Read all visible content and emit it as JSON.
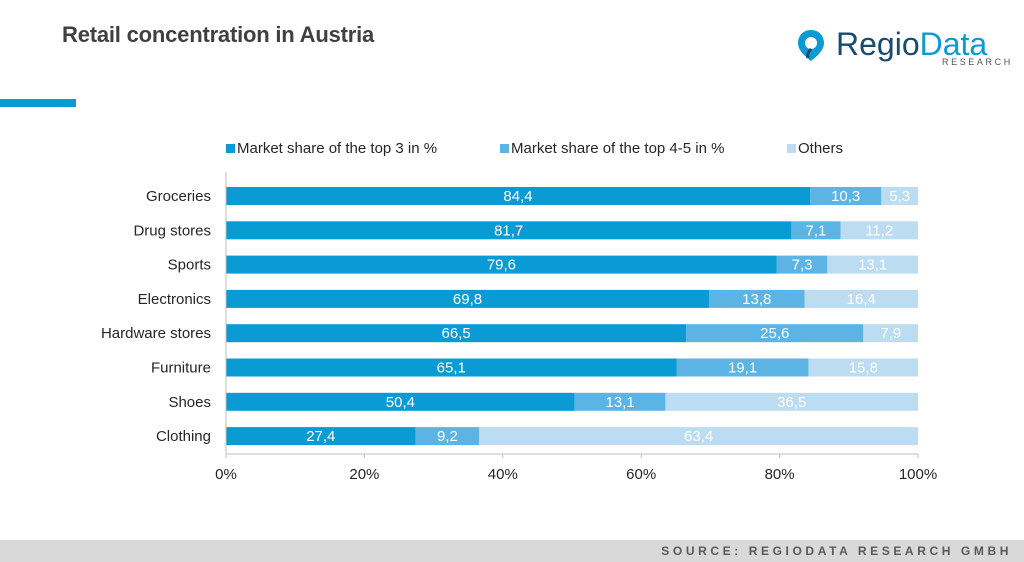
{
  "header": {
    "title": "Retail concentration in Austria",
    "accent_color": "#0a9bd5"
  },
  "logo": {
    "name_part1": "Regio",
    "name_part2": "Data",
    "subtitle": "RESEARCH",
    "icon": "location-pin-icon"
  },
  "footer": {
    "source": "SOURCE: REGIODATA RESEARCH GMBH"
  },
  "chart_data": {
    "type": "bar",
    "orientation": "horizontal",
    "stacked": true,
    "stack_mode": "percent",
    "categories": [
      "Groceries",
      "Drug stores",
      "Sports",
      "Electronics",
      "Hardware stores",
      "Furniture",
      "Shoes",
      "Clothing"
    ],
    "series": [
      {
        "name": "Market share of the top 3 in %",
        "color": "#0a9bd5",
        "values": [
          84.4,
          81.7,
          79.6,
          69.8,
          66.5,
          65.1,
          50.4,
          27.4
        ],
        "labels": [
          "84,4",
          "81,7",
          "79,6",
          "69,8",
          "66,5",
          "65,1",
          "50,4",
          "27,4"
        ]
      },
      {
        "name": "Market share of the top 4-5 in %",
        "color": "#5cb4e5",
        "values": [
          10.3,
          7.1,
          7.3,
          13.8,
          25.6,
          19.1,
          13.1,
          9.2
        ],
        "labels": [
          "10,3",
          "7,1",
          "7,3",
          "13,8",
          "25,6",
          "19,1",
          "13,1",
          "9,2"
        ]
      },
      {
        "name": "Others",
        "color": "#bcdcf2",
        "values": [
          5.3,
          11.2,
          13.1,
          16.4,
          7.9,
          15.8,
          36.5,
          63.4
        ],
        "labels": [
          "5,3",
          "11,2",
          "13,1",
          "16,4",
          "7,9",
          "15,8",
          "36,5",
          "63,4"
        ]
      }
    ],
    "x_ticks": [
      "0%",
      "20%",
      "40%",
      "60%",
      "80%",
      "100%"
    ],
    "xlim": [
      0,
      100
    ],
    "legend_position": "top",
    "grid": false
  }
}
